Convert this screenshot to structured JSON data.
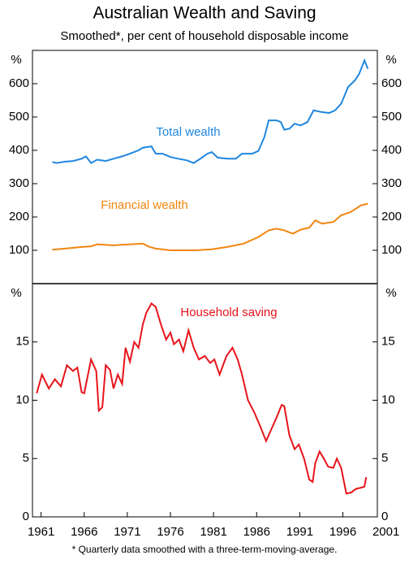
{
  "title": "Australian Wealth and Saving",
  "subtitle": "Smoothed*, per cent of household disposable income",
  "footnote": "* Quarterly data smoothed with a three-term-moving-average.",
  "chart_data": [
    {
      "type": "line",
      "unit_label": "%",
      "xlim": [
        1960,
        2000
      ],
      "ylim": [
        0,
        700
      ],
      "yticks": [
        100,
        200,
        300,
        400,
        500,
        600
      ],
      "series": [
        {
          "name": "Total wealth",
          "color": "#1f86e0",
          "x": [
            1962.3,
            1962.8,
            1963.8,
            1964.7,
            1965.7,
            1966.2,
            1966.8,
            1967.5,
            1968.5,
            1969.4,
            1970.4,
            1971.3,
            1972.3,
            1972.8,
            1973.8,
            1974.3,
            1975.1,
            1976,
            1976.9,
            1977.9,
            1978.7,
            1979.3,
            1980.3,
            1980.8,
            1981.5,
            1982.6,
            1983.6,
            1984.3,
            1985.5,
            1986.2,
            1986.9,
            1987.4,
            1988.3,
            1988.8,
            1989.2,
            1989.8,
            1990.4,
            1991.1,
            1991.9,
            1992.6,
            1993.5,
            1994.4,
            1995.1,
            1995.8,
            1996.6,
            1997.4,
            1997.9,
            1998.5,
            1998.9
          ],
          "values": [
            365,
            362,
            366,
            368,
            375,
            382,
            362,
            372,
            368,
            375,
            382,
            390,
            400,
            408,
            412,
            390,
            390,
            380,
            375,
            370,
            362,
            372,
            390,
            395,
            378,
            375,
            375,
            390,
            390,
            398,
            440,
            490,
            490,
            485,
            462,
            465,
            480,
            475,
            485,
            520,
            515,
            512,
            520,
            540,
            590,
            610,
            630,
            670,
            645
          ]
        },
        {
          "name": "Financial wealth",
          "color": "#f0860f",
          "x": [
            1962.3,
            1963.8,
            1965.7,
            1966.8,
            1967.5,
            1969.4,
            1971.3,
            1972.8,
            1973.6,
            1974.3,
            1976,
            1978.9,
            1980.8,
            1982.6,
            1984.5,
            1986.2,
            1987.4,
            1988.3,
            1989.2,
            1990.2,
            1991.1,
            1992.1,
            1992.8,
            1993.6,
            1994.9,
            1995.8,
            1996.9,
            1998.1,
            1998.9
          ],
          "values": [
            102,
            105,
            110,
            112,
            118,
            115,
            118,
            120,
            110,
            105,
            100,
            100,
            103,
            110,
            120,
            140,
            160,
            165,
            160,
            150,
            162,
            168,
            190,
            180,
            185,
            205,
            215,
            235,
            240
          ]
        }
      ]
    },
    {
      "type": "line",
      "unit_label": "%",
      "xlim": [
        1960,
        2000
      ],
      "ylim": [
        0,
        20
      ],
      "yticks": [
        0,
        5,
        10,
        15
      ],
      "xticks": [
        1961,
        1966,
        1971,
        1976,
        1981,
        1986,
        1991,
        1996,
        2001
      ],
      "series": [
        {
          "name": "Household saving",
          "color": "#e8141b",
          "x": [
            1960.5,
            1961.1,
            1961.9,
            1962.6,
            1963.3,
            1964,
            1964.7,
            1965.2,
            1965.7,
            1966,
            1966.8,
            1967.4,
            1967.7,
            1968.1,
            1968.5,
            1969,
            1969.4,
            1969.9,
            1970.4,
            1970.8,
            1971.3,
            1971.8,
            1972.3,
            1972.8,
            1973.2,
            1973.8,
            1974.3,
            1974.9,
            1975.5,
            1976,
            1976.4,
            1977,
            1977.5,
            1978.1,
            1978.7,
            1979.3,
            1980,
            1980.6,
            1981.1,
            1981.7,
            1982.5,
            1983.2,
            1983.8,
            1984.3,
            1985,
            1985.7,
            1986.4,
            1987.1,
            1987.7,
            1988.3,
            1988.9,
            1989.2,
            1989.8,
            1990.4,
            1990.9,
            1991.5,
            1992.1,
            1992.5,
            1992.8,
            1993.3,
            1993.8,
            1994.3,
            1994.9,
            1995.3,
            1995.8,
            1996.4,
            1997,
            1997.5,
            1998.1,
            1998.5,
            1998.7
          ],
          "values": [
            10.6,
            12.2,
            11,
            11.8,
            11.2,
            13,
            12.5,
            12.8,
            10.7,
            10.6,
            13.5,
            12.5,
            9.1,
            9.4,
            13,
            12.6,
            11,
            12.2,
            11.4,
            14.5,
            13.3,
            15,
            14.5,
            16.5,
            17.5,
            18.3,
            18,
            16.5,
            15.2,
            15.8,
            14.8,
            15.2,
            14.2,
            16,
            14.5,
            13.5,
            13.8,
            13.2,
            13.5,
            12.2,
            13.8,
            14.5,
            13.5,
            12.2,
            10,
            9,
            7.8,
            6.5,
            7.5,
            8.5,
            9.6,
            9.5,
            7,
            5.8,
            6.2,
            5,
            3.2,
            3,
            4.6,
            5.6,
            5,
            4.3,
            4.2,
            5,
            4.2,
            2,
            2.1,
            2.4,
            2.5,
            2.6,
            3.4
          ]
        }
      ]
    }
  ]
}
